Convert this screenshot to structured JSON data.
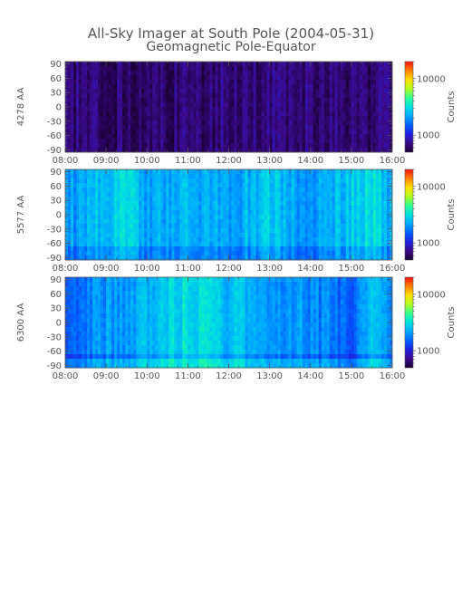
{
  "figure": {
    "title": "All-Sky Imager at South Pole (2004-05-31)",
    "subtitle": "Geomagnetic Pole-Equator"
  },
  "chart_data": [
    {
      "type": "heatmap",
      "ylabel": "4278 AA",
      "x_ticks": [
        "08:00",
        "09:00",
        "10:00",
        "11:00",
        "12:00",
        "13:00",
        "14:00",
        "15:00",
        "16:00"
      ],
      "xlim": [
        "08:00",
        "16:00"
      ],
      "y_ticks": [
        90,
        60,
        30,
        0,
        -30,
        -60,
        -90
      ],
      "ylim": [
        -95,
        95
      ],
      "colorbar": {
        "label": "Counts",
        "scale": "log",
        "ticks": [
          "10000",
          "1000"
        ],
        "range": [
          500,
          20000
        ]
      },
      "base_level": 0.08,
      "intensity_profile": [
        {
          "t": "08:00",
          "level": 0.08
        },
        {
          "t": "10:00",
          "level": 0.06
        },
        {
          "t": "12:00",
          "level": 0.08
        },
        {
          "t": "13:00",
          "level": 0.09
        },
        {
          "t": "15:00",
          "level": 0.06
        },
        {
          "t": "16:00",
          "level": 0.08
        }
      ]
    },
    {
      "type": "heatmap",
      "ylabel": "5577 AA",
      "x_ticks": [
        "08:00",
        "09:00",
        "10:00",
        "11:00",
        "12:00",
        "13:00",
        "14:00",
        "15:00",
        "16:00"
      ],
      "xlim": [
        "08:00",
        "16:00"
      ],
      "y_ticks": [
        90,
        60,
        30,
        0,
        -30,
        -60,
        -90
      ],
      "ylim": [
        -95,
        95
      ],
      "colorbar": {
        "label": "Counts",
        "scale": "log",
        "ticks": [
          "10000",
          "1000"
        ],
        "range": [
          500,
          20000
        ]
      },
      "base_level": 0.38,
      "intensity_profile": [
        {
          "t": "08:00",
          "level": 0.36
        },
        {
          "t": "09:00",
          "level": 0.44
        },
        {
          "t": "09:30",
          "level": 0.48
        },
        {
          "t": "10:00",
          "level": 0.4
        },
        {
          "t": "11:00",
          "level": 0.42
        },
        {
          "t": "12:00",
          "level": 0.4
        },
        {
          "t": "13:00",
          "level": 0.45
        },
        {
          "t": "14:00",
          "level": 0.38
        },
        {
          "t": "15:00",
          "level": 0.46
        },
        {
          "t": "15:30",
          "level": 0.5
        },
        {
          "t": "16:00",
          "level": 0.4
        }
      ]
    },
    {
      "type": "heatmap",
      "ylabel": "6300 AA",
      "x_ticks": [
        "08:00",
        "09:00",
        "10:00",
        "11:00",
        "12:00",
        "13:00",
        "14:00",
        "15:00",
        "16:00"
      ],
      "xlim": [
        "08:00",
        "16:00"
      ],
      "y_ticks": [
        90,
        60,
        30,
        0,
        -30,
        -60,
        -90
      ],
      "ylim": [
        -95,
        95
      ],
      "colorbar": {
        "label": "Counts",
        "scale": "log",
        "ticks": [
          "10000",
          "1000"
        ],
        "range": [
          500,
          20000
        ]
      },
      "base_level": 0.34,
      "intensity_profile": [
        {
          "t": "08:00",
          "level": 0.32
        },
        {
          "t": "09:00",
          "level": 0.38
        },
        {
          "t": "10:00",
          "level": 0.42
        },
        {
          "t": "11:00",
          "level": 0.5
        },
        {
          "t": "12:00",
          "level": 0.44
        },
        {
          "t": "13:00",
          "level": 0.4
        },
        {
          "t": "14:00",
          "level": 0.36
        },
        {
          "t": "15:00",
          "level": 0.3
        },
        {
          "t": "15:30",
          "level": 0.44
        },
        {
          "t": "16:00",
          "level": 0.34
        }
      ]
    }
  ],
  "colors": {
    "colormap": [
      "#1a0035",
      "#3b0a8c",
      "#2020e0",
      "#0060ff",
      "#00a8ff",
      "#00e0e0",
      "#30ff90",
      "#b0ff20",
      "#ffe000",
      "#ff8000",
      "#ff1010"
    ],
    "axis": "#555555"
  }
}
